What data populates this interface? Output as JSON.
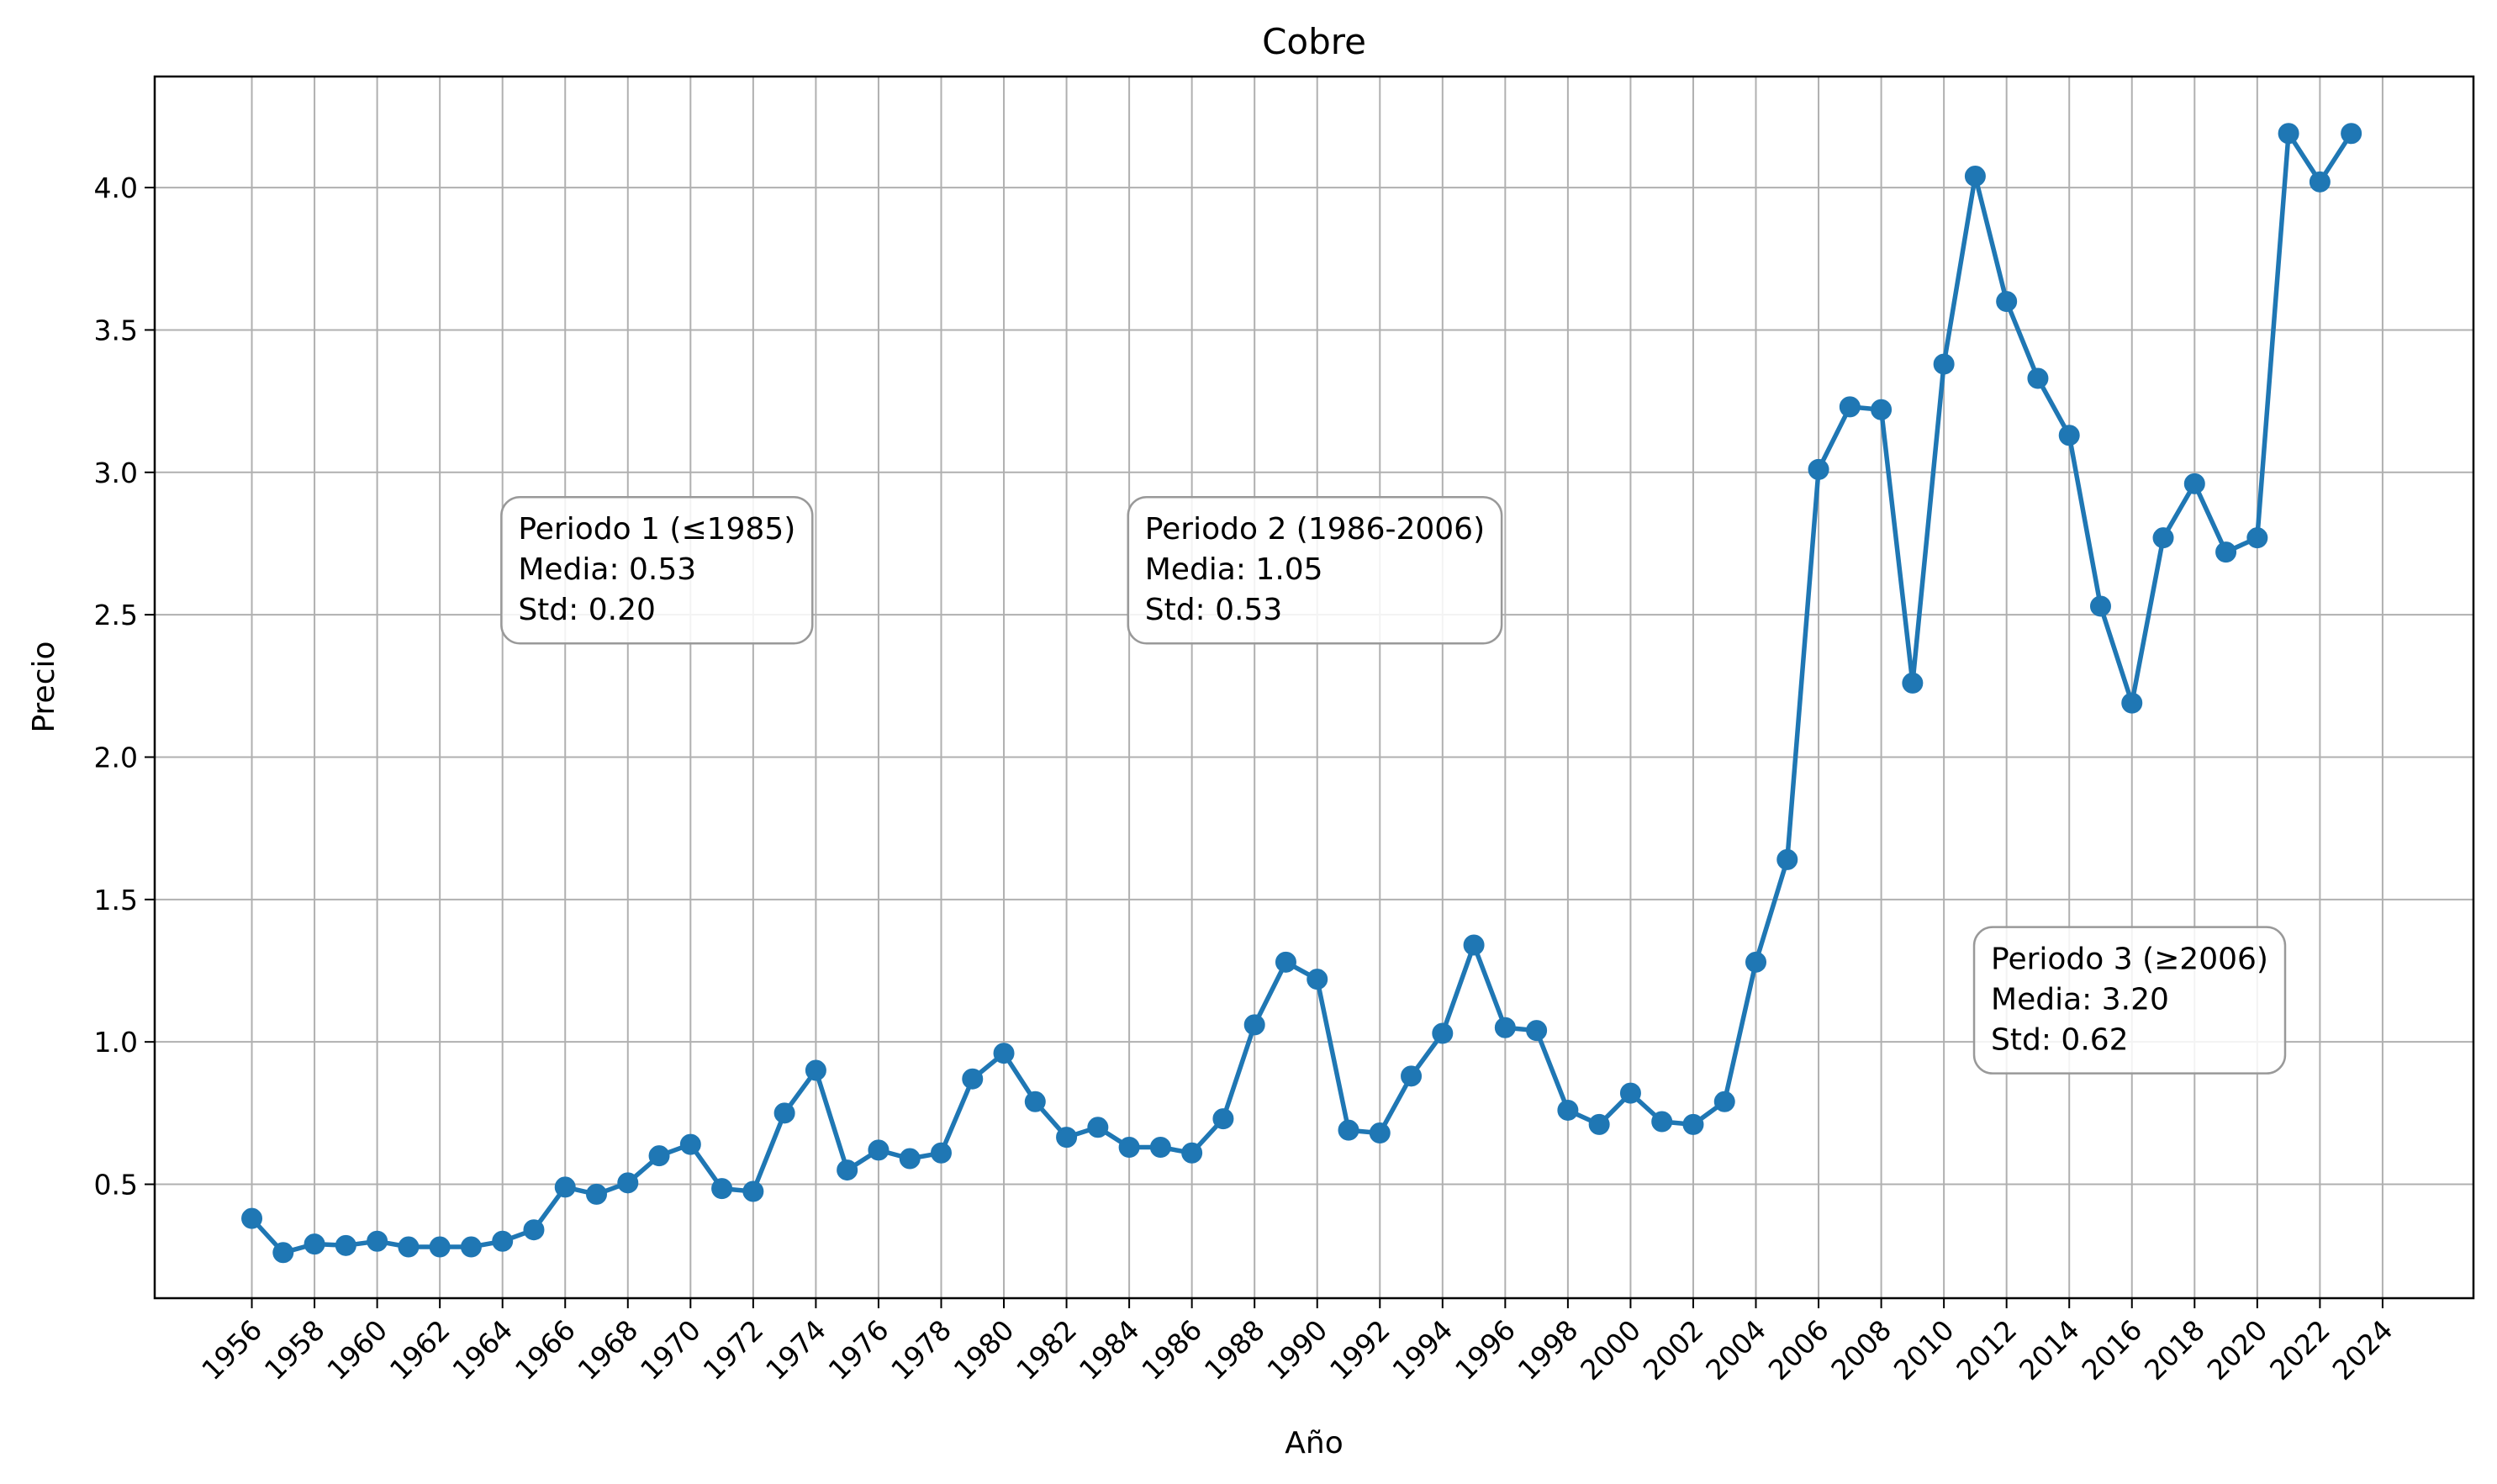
{
  "chart_data": {
    "type": "line",
    "title": "Cobre",
    "xlabel": "Año",
    "ylabel": "Precio",
    "xlim": [
      1952.9,
      2026.9
    ],
    "ylim": [
      0.1,
      4.39
    ],
    "grid": true,
    "x_ticks": [
      1956,
      1958,
      1960,
      1962,
      1964,
      1966,
      1968,
      1970,
      1972,
      1974,
      1976,
      1978,
      1980,
      1982,
      1984,
      1986,
      1988,
      1990,
      1992,
      1994,
      1996,
      1998,
      2000,
      2002,
      2004,
      2006,
      2008,
      2010,
      2012,
      2014,
      2016,
      2018,
      2020,
      2022,
      2024
    ],
    "y_ticks": [
      0.5,
      1.0,
      1.5,
      2.0,
      2.5,
      3.0,
      3.5,
      4.0
    ],
    "x_tick_labels": [
      "1956",
      "1958",
      "1960",
      "1962",
      "1964",
      "1966",
      "1968",
      "1970",
      "1972",
      "1974",
      "1976",
      "1978",
      "1980",
      "1982",
      "1984",
      "1986",
      "1988",
      "1990",
      "1992",
      "1994",
      "1996",
      "1998",
      "2000",
      "2002",
      "2004",
      "2006",
      "2008",
      "2010",
      "2012",
      "2014",
      "2016",
      "2018",
      "2020",
      "2022",
      "2024"
    ],
    "y_tick_labels": [
      "0.5",
      "1.0",
      "1.5",
      "2.0",
      "2.5",
      "3.0",
      "3.5",
      "4.0"
    ],
    "series": [
      {
        "color": "#1f77b4",
        "x": [
          1956,
          1957,
          1958,
          1959,
          1960,
          1961,
          1962,
          1963,
          1964,
          1965,
          1966,
          1967,
          1968,
          1969,
          1970,
          1971,
          1972,
          1973,
          1974,
          1975,
          1976,
          1977,
          1978,
          1979,
          1980,
          1981,
          1982,
          1983,
          1984,
          1985,
          1986,
          1987,
          1988,
          1989,
          1990,
          1991,
          1992,
          1993,
          1994,
          1995,
          1996,
          1997,
          1998,
          1999,
          2000,
          2001,
          2002,
          2003,
          2004,
          2005,
          2006,
          2007,
          2008,
          2009,
          2010,
          2011,
          2012,
          2013,
          2014,
          2015,
          2016,
          2017,
          2018,
          2019,
          2020,
          2021,
          2022,
          2023
        ],
        "y": [
          0.38,
          0.26,
          0.29,
          0.285,
          0.3,
          0.28,
          0.28,
          0.28,
          0.3,
          0.34,
          0.49,
          0.465,
          0.505,
          0.6,
          0.64,
          0.485,
          0.475,
          0.75,
          0.9,
          0.55,
          0.62,
          0.59,
          0.61,
          0.87,
          0.96,
          0.79,
          0.665,
          0.7,
          0.63,
          0.63,
          0.61,
          0.73,
          1.06,
          1.28,
          1.22,
          0.69,
          0.68,
          0.88,
          1.03,
          1.34,
          1.05,
          1.04,
          0.76,
          0.71,
          0.82,
          0.72,
          0.71,
          0.79,
          1.28,
          1.64,
          3.01,
          3.23,
          3.22,
          2.26,
          3.38,
          4.04,
          3.6,
          3.33,
          3.13,
          2.53,
          2.19,
          2.77,
          2.96,
          2.72,
          2.77,
          4.19,
          4.02,
          4.19
        ]
      }
    ],
    "annotations": [
      {
        "lines": [
          "Periodo 1 (≤1985)",
          "Media: 0.53",
          "Std: 0.20"
        ],
        "anchor_x": 1964.5,
        "anchor_y": 2.86
      },
      {
        "lines": [
          "Periodo 2 (1986-2006)",
          "Media: 1.05",
          "Std: 0.53"
        ],
        "anchor_x": 1984.5,
        "anchor_y": 2.86
      },
      {
        "lines": [
          "Periodo 3 (≥2006)",
          "Media: 3.20",
          "Std: 0.62"
        ],
        "anchor_x": 2011.5,
        "anchor_y": 1.35
      }
    ]
  }
}
